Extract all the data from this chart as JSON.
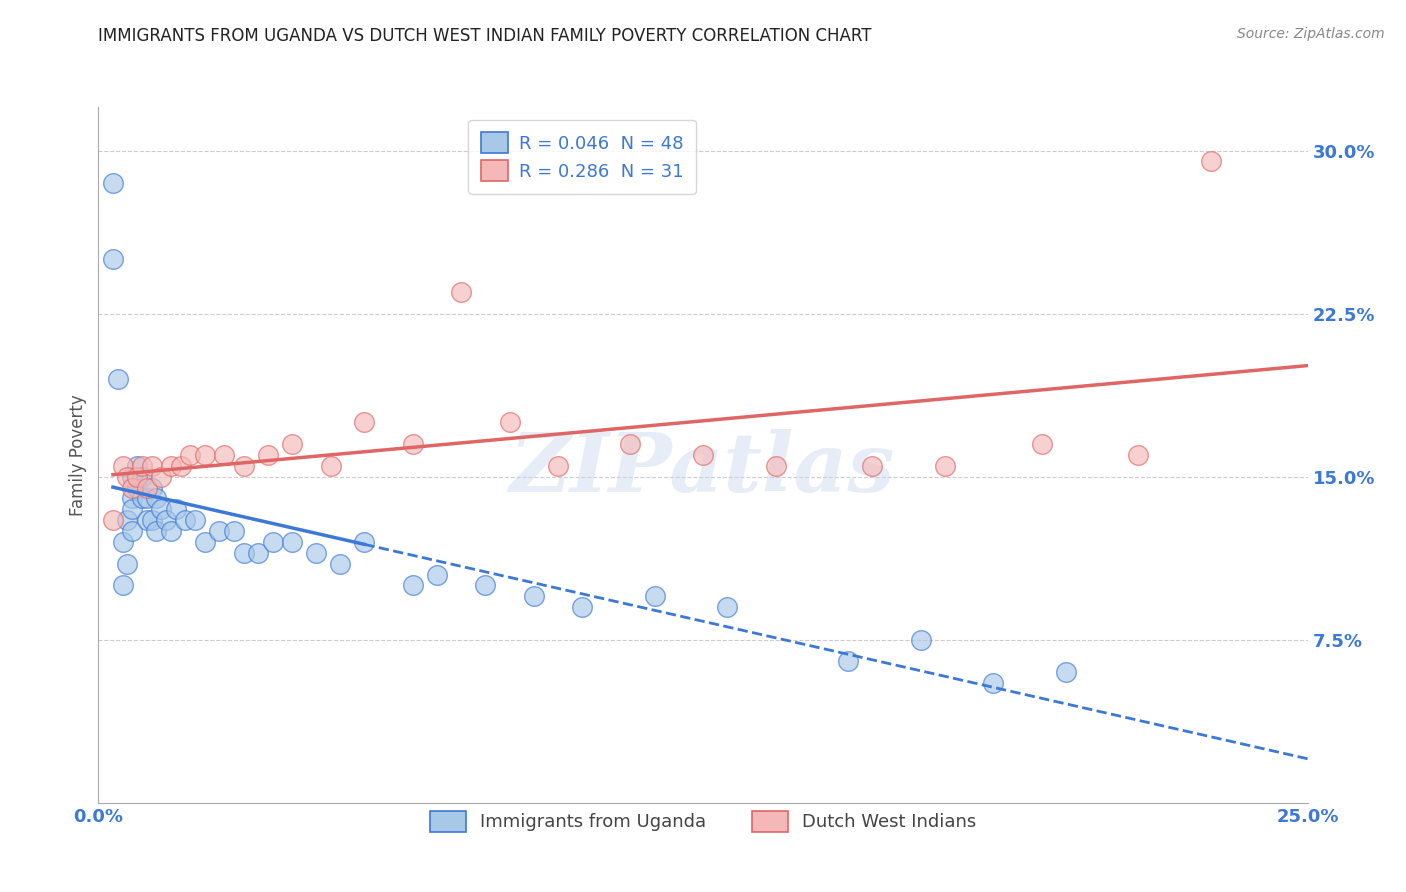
{
  "title": "IMMIGRANTS FROM UGANDA VS DUTCH WEST INDIAN FAMILY POVERTY CORRELATION CHART",
  "source": "Source: ZipAtlas.com",
  "ylabel": "Family Poverty",
  "xlabel": "",
  "xlim": [
    0.0,
    0.25
  ],
  "ylim": [
    0.0,
    0.32
  ],
  "yticks": [
    0.075,
    0.15,
    0.225,
    0.3
  ],
  "ytick_labels": [
    "7.5%",
    "15.0%",
    "22.5%",
    "30.0%"
  ],
  "xtick_labels": [
    "0.0%",
    "25.0%"
  ],
  "xticks": [
    0.0,
    0.25
  ],
  "legend_r1": "R = 0.046  N = 48",
  "legend_r2": "R = 0.286  N = 31",
  "blue_fill": "#a8c8e8",
  "pink_fill": "#f4b8b8",
  "blue_edge": "#3c78d8",
  "pink_edge": "#e06666",
  "blue_line": "#3c78d8",
  "pink_line": "#e06666",
  "watermark": "ZIPatlas",
  "blue_scatter_x": [
    0.003,
    0.003,
    0.004,
    0.005,
    0.005,
    0.006,
    0.006,
    0.007,
    0.007,
    0.007,
    0.007,
    0.008,
    0.008,
    0.009,
    0.009,
    0.01,
    0.01,
    0.011,
    0.011,
    0.012,
    0.012,
    0.013,
    0.014,
    0.015,
    0.016,
    0.018,
    0.02,
    0.022,
    0.025,
    0.028,
    0.03,
    0.033,
    0.036,
    0.04,
    0.045,
    0.05,
    0.055,
    0.065,
    0.07,
    0.08,
    0.09,
    0.1,
    0.115,
    0.13,
    0.155,
    0.17,
    0.185,
    0.2
  ],
  "blue_scatter_y": [
    0.285,
    0.25,
    0.195,
    0.12,
    0.1,
    0.11,
    0.13,
    0.125,
    0.14,
    0.15,
    0.135,
    0.145,
    0.155,
    0.15,
    0.14,
    0.14,
    0.13,
    0.145,
    0.13,
    0.14,
    0.125,
    0.135,
    0.13,
    0.125,
    0.135,
    0.13,
    0.13,
    0.12,
    0.125,
    0.125,
    0.115,
    0.115,
    0.12,
    0.12,
    0.115,
    0.11,
    0.12,
    0.1,
    0.105,
    0.1,
    0.095,
    0.09,
    0.095,
    0.09,
    0.065,
    0.075,
    0.055,
    0.06
  ],
  "pink_scatter_x": [
    0.003,
    0.005,
    0.006,
    0.007,
    0.008,
    0.009,
    0.01,
    0.011,
    0.013,
    0.015,
    0.017,
    0.019,
    0.022,
    0.026,
    0.03,
    0.035,
    0.04,
    0.048,
    0.055,
    0.065,
    0.075,
    0.085,
    0.095,
    0.11,
    0.125,
    0.14,
    0.16,
    0.175,
    0.195,
    0.215,
    0.23
  ],
  "pink_scatter_y": [
    0.13,
    0.155,
    0.15,
    0.145,
    0.15,
    0.155,
    0.145,
    0.155,
    0.15,
    0.155,
    0.155,
    0.16,
    0.16,
    0.16,
    0.155,
    0.16,
    0.165,
    0.155,
    0.175,
    0.165,
    0.235,
    0.175,
    0.155,
    0.165,
    0.16,
    0.155,
    0.155,
    0.155,
    0.165,
    0.16,
    0.295
  ],
  "blue_line_solid_xrange": [
    0.003,
    0.055
  ],
  "blue_line_dash_xrange": [
    0.055,
    0.25
  ],
  "pink_line_xrange": [
    0.003,
    0.25
  ]
}
